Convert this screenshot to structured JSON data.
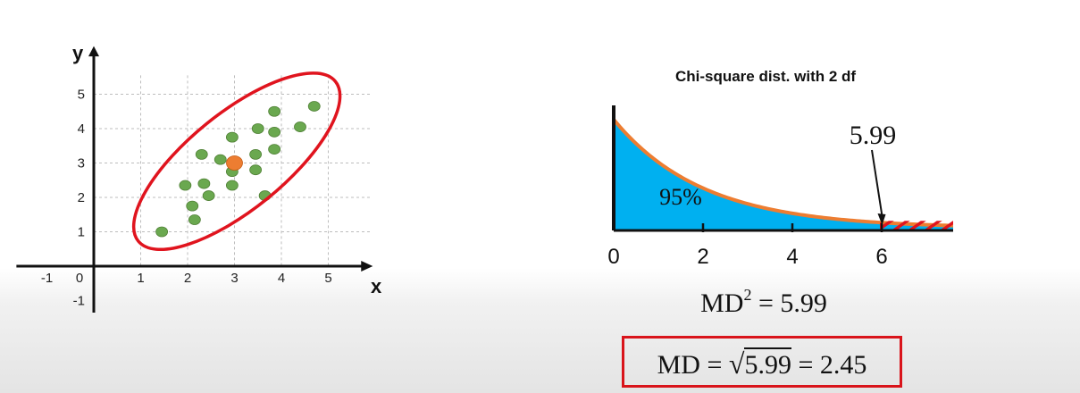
{
  "chart_data": [
    {
      "type": "scatter",
      "title": "",
      "xlabel": "x",
      "ylabel": "y",
      "xlim": [
        -1.3,
        5.9
      ],
      "ylim": [
        -1.2,
        5.8
      ],
      "grid": true,
      "x_ticks": [
        "-1",
        "0",
        "1",
        "2",
        "3",
        "4",
        "5"
      ],
      "y_ticks": [
        "-1",
        "1",
        "2",
        "3",
        "4",
        "5"
      ],
      "points_color": "#6aa84f",
      "center_color": "#ed7d31",
      "ellipse_color": "#e0141e",
      "points": [
        [
          1.45,
          1.0
        ],
        [
          2.15,
          1.35
        ],
        [
          2.1,
          1.75
        ],
        [
          1.95,
          2.35
        ],
        [
          2.45,
          2.05
        ],
        [
          2.35,
          2.4
        ],
        [
          2.95,
          2.35
        ],
        [
          2.3,
          3.25
        ],
        [
          2.7,
          3.1
        ],
        [
          2.95,
          2.75
        ],
        [
          3.45,
          3.25
        ],
        [
          3.45,
          2.8
        ],
        [
          3.65,
          2.05
        ],
        [
          3.85,
          3.4
        ],
        [
          2.95,
          3.75
        ],
        [
          3.5,
          4.0
        ],
        [
          3.85,
          3.9
        ],
        [
          3.85,
          4.5
        ],
        [
          4.4,
          4.05
        ],
        [
          4.7,
          4.65
        ]
      ],
      "center": [
        3.0,
        3.0
      ]
    },
    {
      "type": "area",
      "title": "Chi-square dist. with 2 df",
      "df": 2,
      "xlim": [
        0,
        7.6
      ],
      "x_ticks": [
        "0",
        "2",
        "4",
        "6"
      ],
      "critical_value": 5.99,
      "critical_label": "5.99",
      "area_label": "95%",
      "fill_color": "#00b0f0",
      "curve_color": "#ed7d31",
      "tail_color": "#e0141e"
    }
  ],
  "equations": {
    "md2_lhs": "MD",
    "md2_exp": "2",
    "md2_rhs": "= 5.99",
    "md_lhs": "MD =",
    "md_radicand": "5.99",
    "md_rhs": "= 2.45",
    "box_color": "#d9141b"
  }
}
